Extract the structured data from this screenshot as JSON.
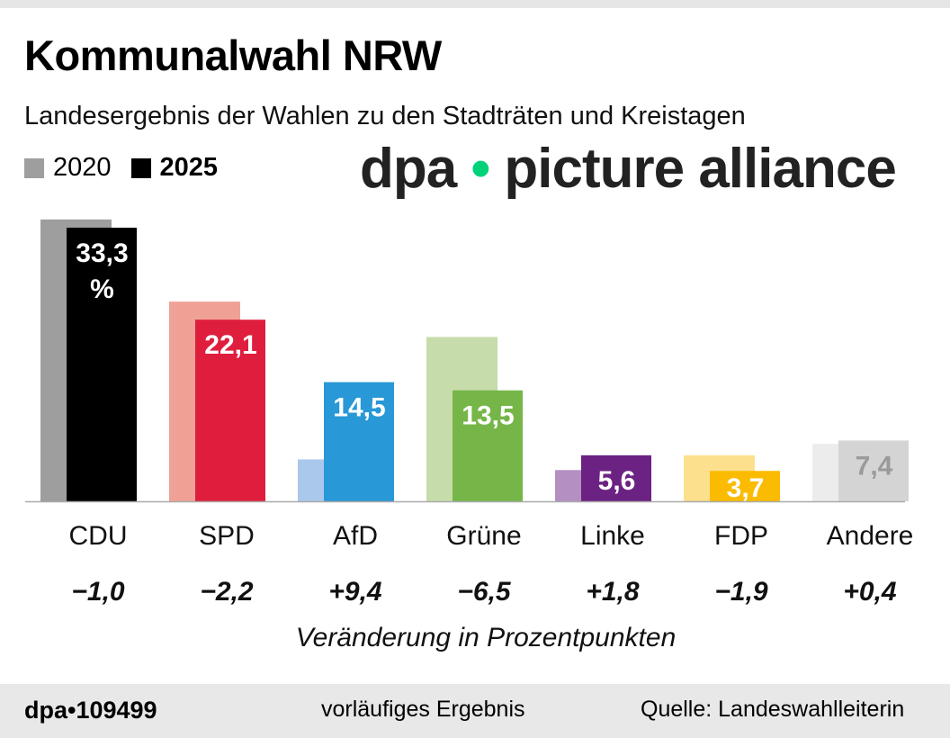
{
  "title": "Kommunalwahl NRW",
  "subtitle": "Landesergebnis der Wahlen zu den Stadträten und Kreistagen",
  "chart_data": {
    "type": "bar",
    "categories": [
      "CDU",
      "SPD",
      "AfD",
      "Grüne",
      "Linke",
      "FDP",
      "Andere"
    ],
    "series": [
      {
        "name": "2020",
        "values": [
          34.3,
          24.3,
          5.1,
          20.0,
          3.8,
          5.6,
          7.0
        ],
        "colors": [
          "#9e9e9e",
          "#f0a196",
          "#a9c8ec",
          "#c6dcab",
          "#b48fc1",
          "#fde08e",
          "#ececec"
        ]
      },
      {
        "name": "2025",
        "values": [
          33.3,
          22.1,
          14.5,
          13.5,
          5.6,
          3.7,
          7.4
        ],
        "colors": [
          "#000000",
          "#df1e3d",
          "#2898d6",
          "#76b649",
          "#6b2282",
          "#fbbb00",
          "#d4d4d4"
        ]
      }
    ],
    "data_labels": [
      "33,3",
      "22,1",
      "14,5",
      "13,5",
      "5,6",
      "3,7",
      "7,4"
    ],
    "first_label_unit": "%",
    "label_colors": [
      "#ffffff",
      "#ffffff",
      "#ffffff",
      "#ffffff",
      "#ffffff",
      "#ffffff",
      "#9a9a9a"
    ],
    "changes": [
      "−1,0",
      "−2,2",
      "+9,4",
      "−6,5",
      "+1,8",
      "−1,9",
      "+0,4"
    ],
    "changes_label": "Veränderung in Prozentpunkten",
    "ylim": [
      0,
      35
    ],
    "grid": false,
    "legend": "top-left"
  },
  "legend": {
    "y2020": "2020",
    "y2025": "2025",
    "c2020": "#9e9e9e",
    "c2025": "#000000"
  },
  "watermark": "dpa picture alliance",
  "footer": {
    "id": "dpa•109499",
    "note": "vorläufiges Ergebnis",
    "source": "Quelle: Landeswahlleiterin"
  }
}
